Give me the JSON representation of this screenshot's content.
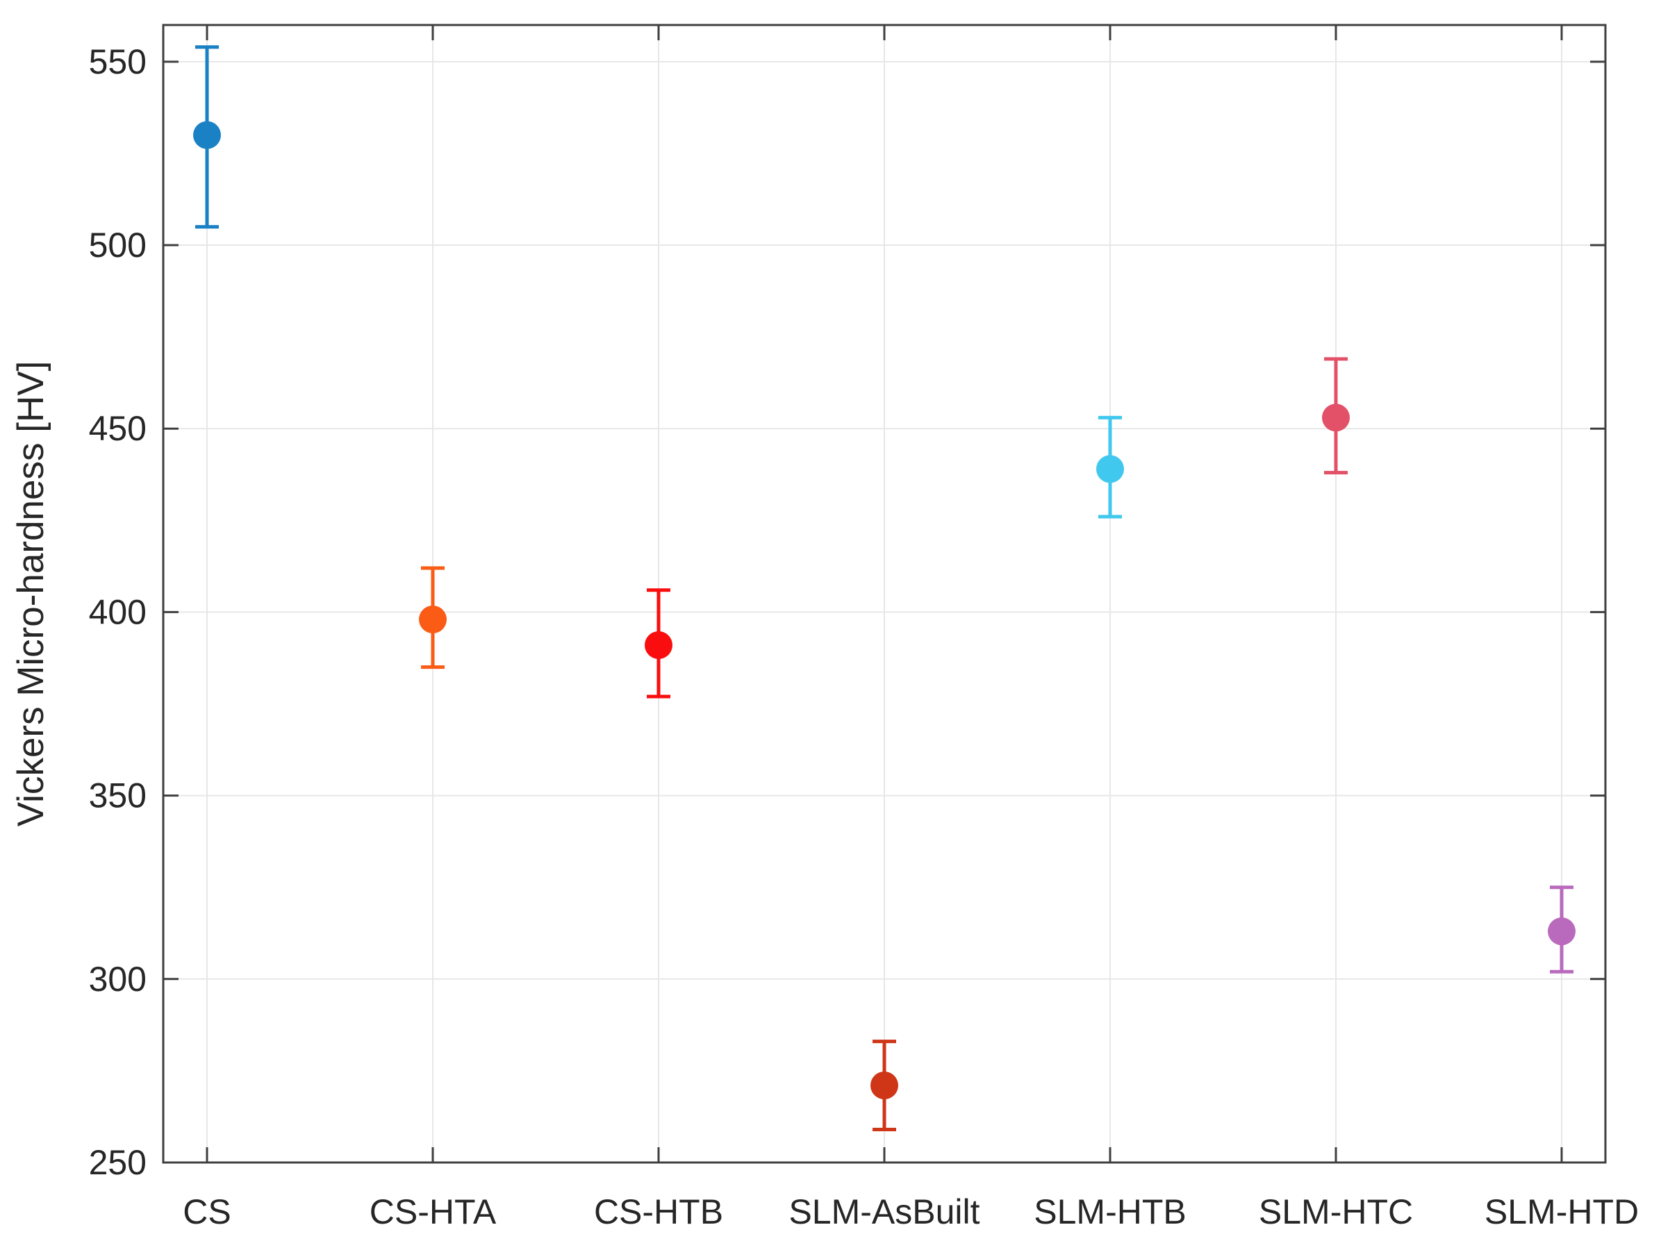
{
  "figure": {
    "background": "#ffffff"
  },
  "chart_data": {
    "type": "scatter",
    "title": "",
    "xlabel": "",
    "ylabel": "Vickers Micro-hardness [HV]",
    "categories": [
      "CS",
      "CS-HTA",
      "CS-HTB",
      "SLM-AsBuilt",
      "SLM-HTB",
      "SLM-HTC",
      "SLM-HTD"
    ],
    "series": [
      {
        "name": "Vickers micro-hardness",
        "points": [
          {
            "category": "CS",
            "value": 530,
            "err_plus": 24,
            "err_minus": 25,
            "color": "#1a81c4"
          },
          {
            "category": "CS-HTA",
            "value": 398,
            "err_plus": 14,
            "err_minus": 13,
            "color": "#fa5b15"
          },
          {
            "category": "CS-HTB",
            "value": 391,
            "err_plus": 15,
            "err_minus": 14,
            "color": "#f90d0e"
          },
          {
            "category": "SLM-AsBuilt",
            "value": 271,
            "err_plus": 12,
            "err_minus": 12,
            "color": "#cf3517"
          },
          {
            "category": "SLM-HTB",
            "value": 439,
            "err_plus": 14,
            "err_minus": 13,
            "color": "#41c8ee"
          },
          {
            "category": "SLM-HTC",
            "value": 453,
            "err_plus": 16,
            "err_minus": 15,
            "color": "#e25168"
          },
          {
            "category": "SLM-HTD",
            "value": 313,
            "err_plus": 12,
            "err_minus": 11,
            "color": "#b96abd"
          }
        ]
      }
    ],
    "yticks": [
      250,
      300,
      350,
      400,
      450,
      500,
      550
    ],
    "ylim": [
      250,
      560
    ],
    "grid": true,
    "legend_position": "none",
    "axis_color": "#3f3f3f",
    "grid_color": "#e7e7e7",
    "tick_label_color": "#262626"
  }
}
